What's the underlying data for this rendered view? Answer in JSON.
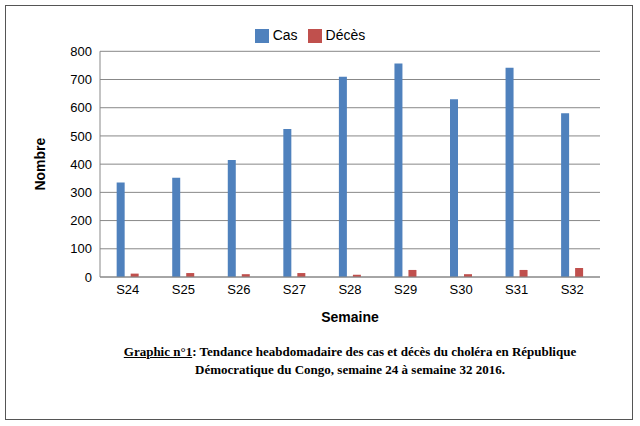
{
  "chart_data": {
    "type": "bar",
    "title": "Graphic n°1: Tendance heabdomadaire des cas et décès du choléra en République Démocratique du Congo, semaine 24 à semaine 32 2016.",
    "x_label": "Semaine",
    "y_label": "Nombre",
    "categories": [
      "S24",
      "S25",
      "S26",
      "S27",
      "S28",
      "S29",
      "S30",
      "S31",
      "S32"
    ],
    "series": [
      {
        "name": "Cas",
        "color": "#4f81bd",
        "values": [
          335,
          352,
          415,
          525,
          710,
          757,
          630,
          742,
          580
        ]
      },
      {
        "name": "Décès",
        "color": "#c0504d",
        "values": [
          12,
          14,
          10,
          14,
          8,
          25,
          10,
          25,
          32
        ]
      }
    ],
    "ylim": [
      0,
      800
    ],
    "yticks": [
      0,
      100,
      200,
      300,
      400,
      500,
      600,
      700,
      800
    ],
    "grid": true,
    "legend": "top"
  }
}
